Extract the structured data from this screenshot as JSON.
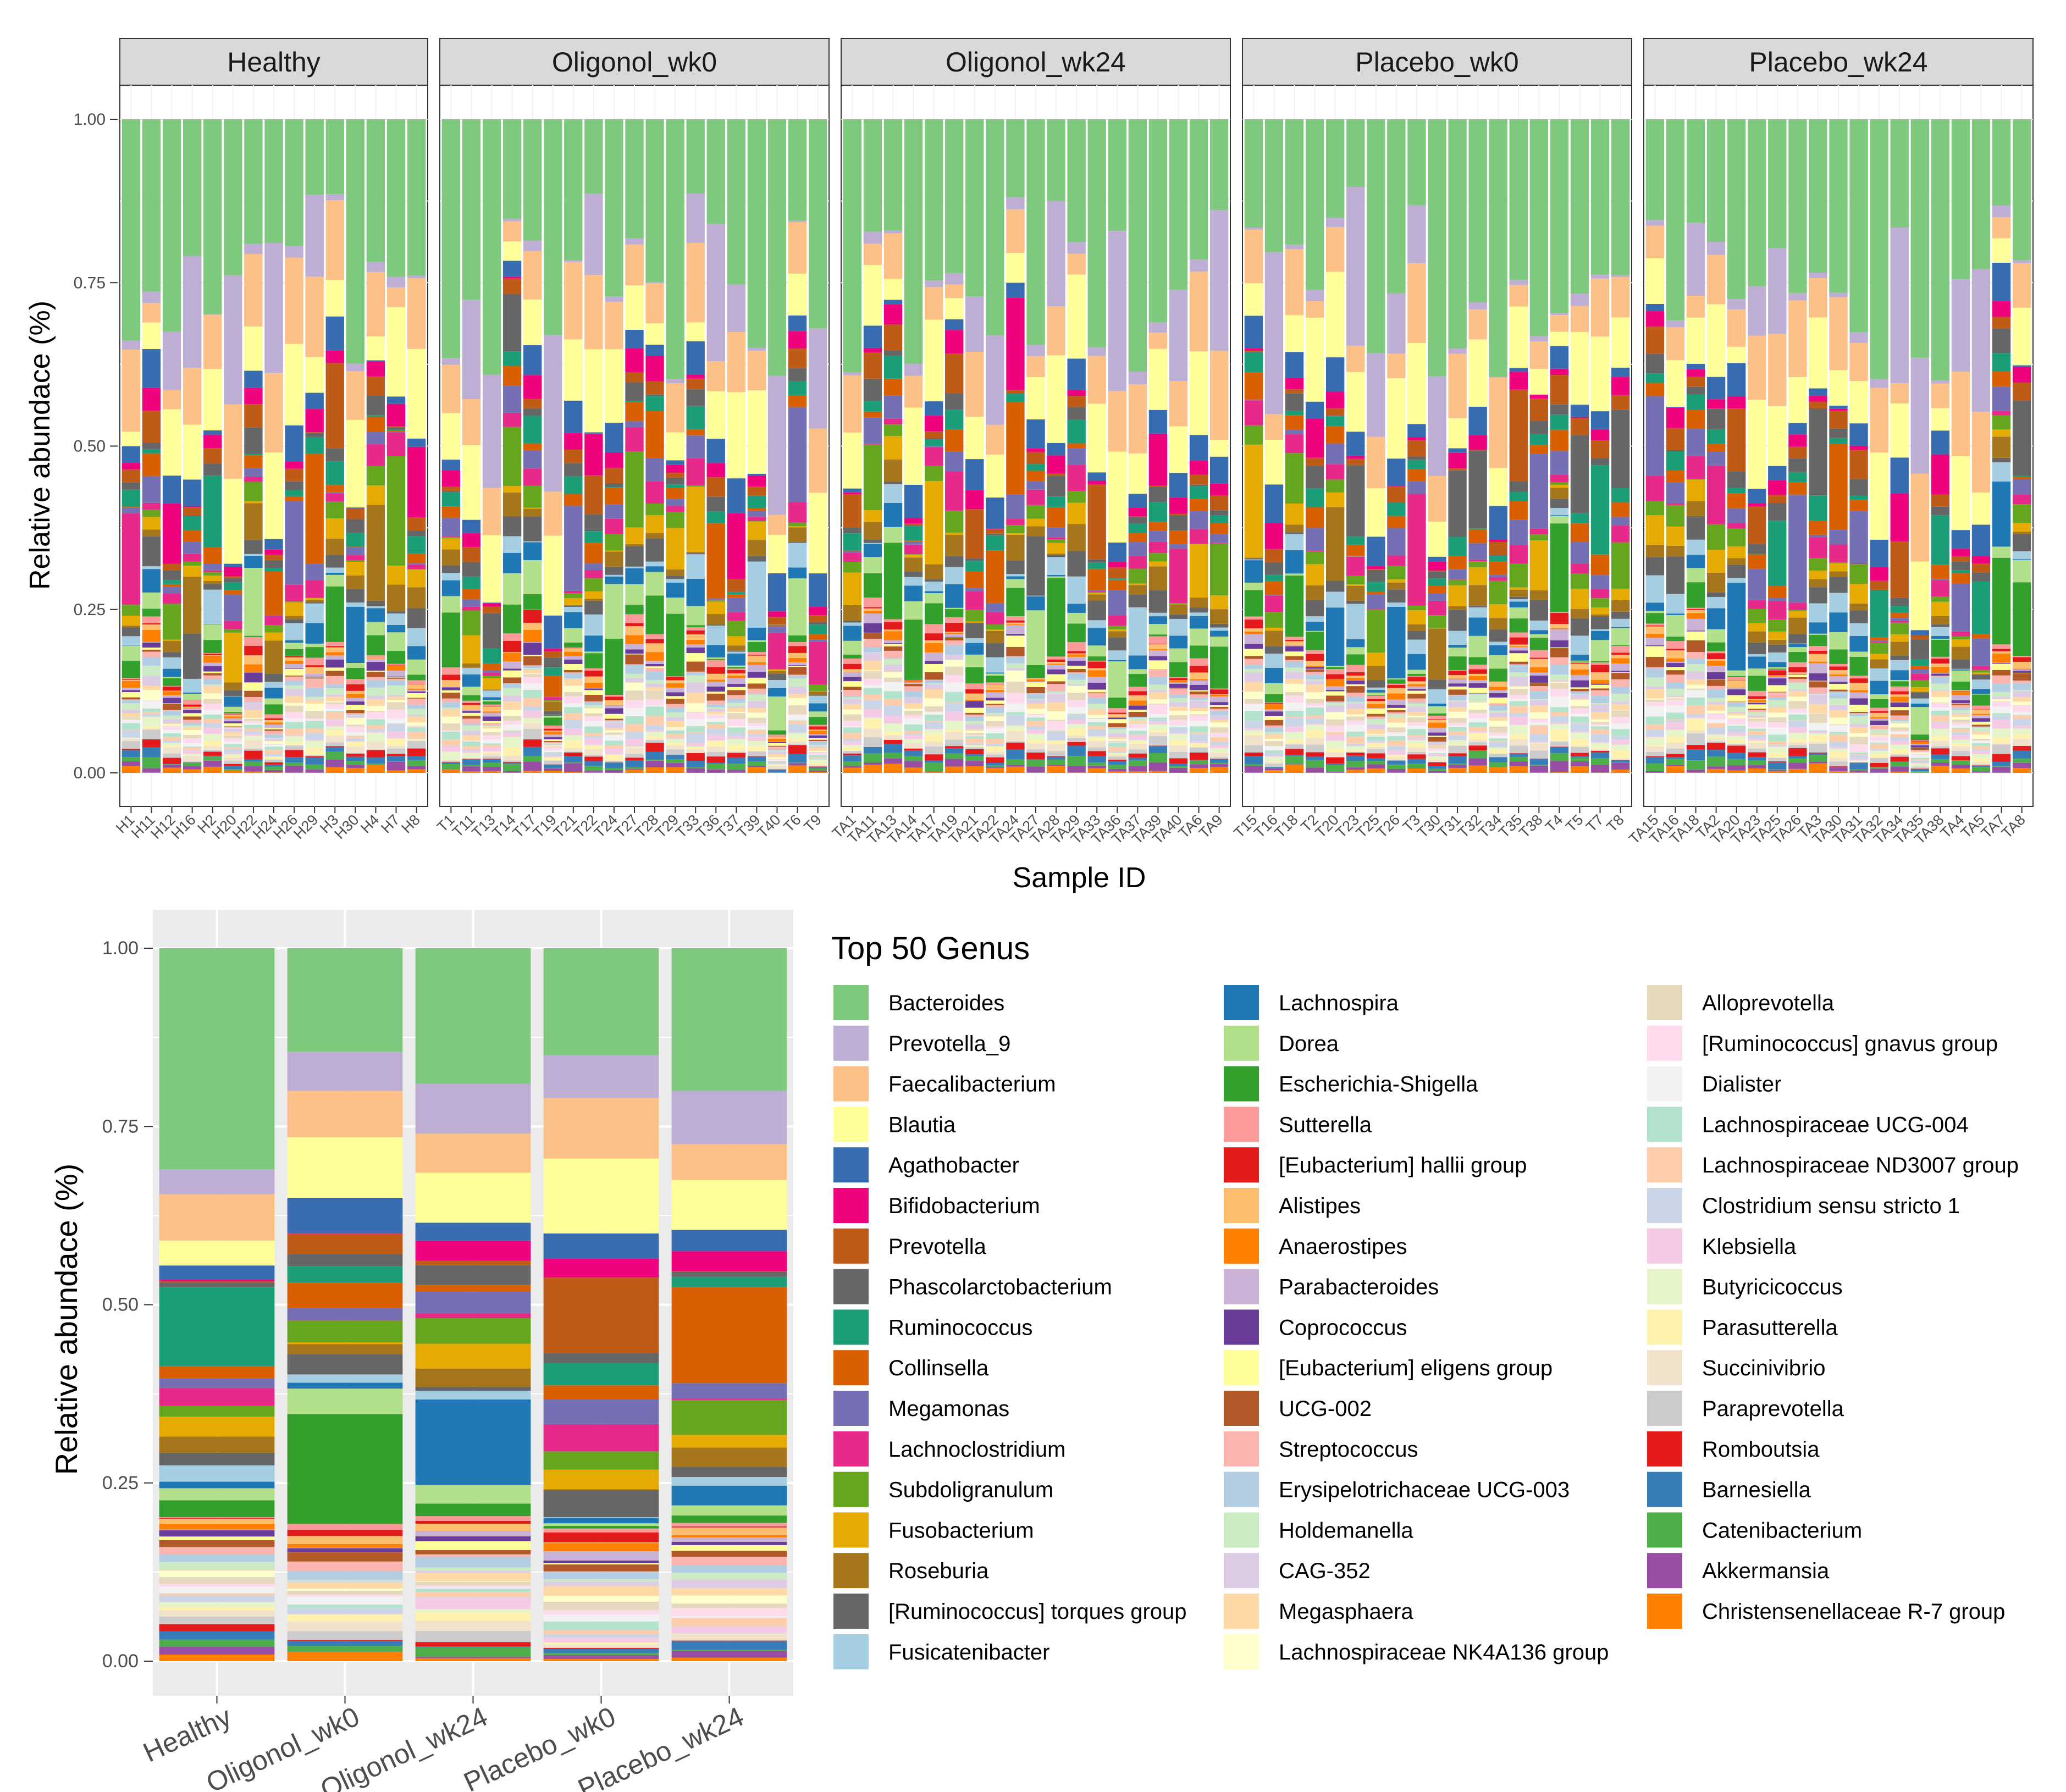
{
  "chart_data": [
    {
      "type": "bar",
      "stacked": true,
      "faceted": true,
      "ylabel": "Relative abundace (%)",
      "xlabel": "Sample ID",
      "ylim": [
        0,
        1
      ],
      "yticks": [
        "0.00",
        "0.25",
        "0.50",
        "0.75",
        "1.00"
      ],
      "facets": [
        {
          "name": "Healthy",
          "samples": [
            "H1",
            "H11",
            "H12",
            "H16",
            "H2",
            "H20",
            "H22",
            "H24",
            "H26",
            "H29",
            "H3",
            "H30",
            "H4",
            "H7",
            "H8"
          ]
        },
        {
          "name": "Oligonol_wk0",
          "samples": [
            "T1",
            "T11",
            "T13",
            "T14",
            "T17",
            "T19",
            "T21",
            "T22",
            "T24",
            "T27",
            "T28",
            "T29",
            "T33",
            "T36",
            "T37",
            "T39",
            "T40",
            "T6",
            "T9"
          ]
        },
        {
          "name": "Oligonol_wk24",
          "samples": [
            "TA1",
            "TA11",
            "TA13",
            "TA14",
            "TA17",
            "TA19",
            "TA21",
            "TA22",
            "TA24",
            "TA27",
            "TA28",
            "TA29",
            "TA33",
            "TA36",
            "TA37",
            "TA39",
            "TA40",
            "TA6",
            "TA9"
          ]
        },
        {
          "name": "Placebo_wk0",
          "samples": [
            "T15",
            "T16",
            "T18",
            "T2",
            "T20",
            "T23",
            "T25",
            "T26",
            "T3",
            "T30",
            "T31",
            "T32",
            "T34",
            "T35",
            "T38",
            "T4",
            "T5",
            "T7",
            "T8"
          ]
        },
        {
          "name": "Placebo_wk24",
          "samples": [
            "TA15",
            "TA16",
            "TA18",
            "TA2",
            "TA20",
            "TA23",
            "TA25",
            "TA26",
            "TA3",
            "TA30",
            "TA31",
            "TA32",
            "TA34",
            "TA35",
            "TA38",
            "TA4",
            "TA5",
            "TA7",
            "TA8"
          ]
        }
      ]
    },
    {
      "type": "bar",
      "stacked": true,
      "ylabel": "Relative abundace (%)",
      "xlabel": "",
      "ylim": [
        0,
        1
      ],
      "yticks": [
        "0.00",
        "0.25",
        "0.50",
        "0.75",
        "1.00"
      ],
      "categories": [
        "Healthy",
        "Oligonol_wk0",
        "Oligonol_wk24",
        "Placebo_wk0",
        "Placebo_wk24"
      ],
      "top_shares": [
        {
          "group": "Healthy",
          "Bacteroides": 0.31,
          "Prevotella_9": 0.035,
          "Faecalibacterium": 0.065,
          "Blautia": 0.035,
          "Agathobacter": 0.02
        },
        {
          "group": "Oligonol_wk0",
          "Bacteroides": 0.145,
          "Prevotella_9": 0.055,
          "Faecalibacterium": 0.065,
          "Blautia": 0.085,
          "Agathobacter": 0.05
        },
        {
          "group": "Oligonol_wk24",
          "Bacteroides": 0.19,
          "Prevotella_9": 0.07,
          "Faecalibacterium": 0.055,
          "Blautia": 0.07,
          "Agathobacter": 0.025
        },
        {
          "group": "Placebo_wk0",
          "Bacteroides": 0.15,
          "Prevotella_9": 0.06,
          "Faecalibacterium": 0.085,
          "Blautia": 0.105,
          "Agathobacter": 0.035
        },
        {
          "group": "Placebo_wk24",
          "Bacteroides": 0.2,
          "Prevotella_9": 0.075,
          "Faecalibacterium": 0.05,
          "Blautia": 0.07,
          "Agathobacter": 0.03
        }
      ]
    }
  ],
  "legend": {
    "title": "Top 50 Genus",
    "items": [
      {
        "name": "Bacteroides",
        "color": "#7FC97F"
      },
      {
        "name": "Prevotella_9",
        "color": "#BEAED4"
      },
      {
        "name": "Faecalibacterium",
        "color": "#FDC086"
      },
      {
        "name": "Blautia",
        "color": "#FFFF99"
      },
      {
        "name": "Agathobacter",
        "color": "#386CB0"
      },
      {
        "name": "Bifidobacterium",
        "color": "#F0027F"
      },
      {
        "name": "Prevotella",
        "color": "#BF5B17"
      },
      {
        "name": "Phascolarctobacterium",
        "color": "#666666"
      },
      {
        "name": "Ruminococcus",
        "color": "#1B9E77"
      },
      {
        "name": "Collinsella",
        "color": "#D95F02"
      },
      {
        "name": "Megamonas",
        "color": "#7570B3"
      },
      {
        "name": "Lachnoclostridium",
        "color": "#E7298A"
      },
      {
        "name": "Subdoligranulum",
        "color": "#66A61E"
      },
      {
        "name": "Fusobacterium",
        "color": "#E6AB02"
      },
      {
        "name": "Roseburia",
        "color": "#A6761D"
      },
      {
        "name": "[Ruminococcus] torques group",
        "color": "#666666"
      },
      {
        "name": "Fusicatenibacter",
        "color": "#A6CEE3"
      },
      {
        "name": "Lachnospira",
        "color": "#1F78B4"
      },
      {
        "name": "Dorea",
        "color": "#B2DF8A"
      },
      {
        "name": "Escherichia-Shigella",
        "color": "#33A02C"
      },
      {
        "name": "Sutterella",
        "color": "#FB9A99"
      },
      {
        "name": "[Eubacterium] hallii group",
        "color": "#E31A1C"
      },
      {
        "name": "Alistipes",
        "color": "#FDBF6F"
      },
      {
        "name": "Anaerostipes",
        "color": "#FF7F00"
      },
      {
        "name": "Parabacteroides",
        "color": "#CAB2D6"
      },
      {
        "name": "Coprococcus",
        "color": "#6A3D9A"
      },
      {
        "name": "[Eubacterium] eligens group",
        "color": "#FFFF99"
      },
      {
        "name": "UCG-002",
        "color": "#B15928"
      },
      {
        "name": "Streptococcus",
        "color": "#FBB4AE"
      },
      {
        "name": "Erysipelotrichaceae UCG-003",
        "color": "#B3CDE3"
      },
      {
        "name": "Holdemanella",
        "color": "#CCEBC5"
      },
      {
        "name": "CAG-352",
        "color": "#DECBE4"
      },
      {
        "name": "Megasphaera",
        "color": "#FED9A6"
      },
      {
        "name": "Lachnospiraceae NK4A136 group",
        "color": "#FFFFCC"
      },
      {
        "name": "Alloprevotella",
        "color": "#E5D8BD"
      },
      {
        "name": "[Ruminococcus] gnavus group",
        "color": "#FDDAEC"
      },
      {
        "name": "Dialister",
        "color": "#F2F2F2"
      },
      {
        "name": "Lachnospiraceae UCG-004",
        "color": "#B3E2CD"
      },
      {
        "name": "Lachnospiraceae ND3007 group",
        "color": "#FDCDAC"
      },
      {
        "name": "Clostridium sensu stricto 1",
        "color": "#CBD5E8"
      },
      {
        "name": "Klebsiella",
        "color": "#F4CAE4"
      },
      {
        "name": "Butyricicoccus",
        "color": "#E6F5C9"
      },
      {
        "name": "Parasutterella",
        "color": "#FFF2AE"
      },
      {
        "name": "Succinivibrio",
        "color": "#F1E2CC"
      },
      {
        "name": "Paraprevotella",
        "color": "#CCCCCC"
      },
      {
        "name": "Romboutsia",
        "color": "#E41A1C"
      },
      {
        "name": "Barnesiella",
        "color": "#377EB8"
      },
      {
        "name": "Catenibacterium",
        "color": "#4DAF4A"
      },
      {
        "name": "Akkermansia",
        "color": "#984EA3"
      },
      {
        "name": "Christensenellaceae R-7 group",
        "color": "#FF7F00"
      }
    ]
  }
}
